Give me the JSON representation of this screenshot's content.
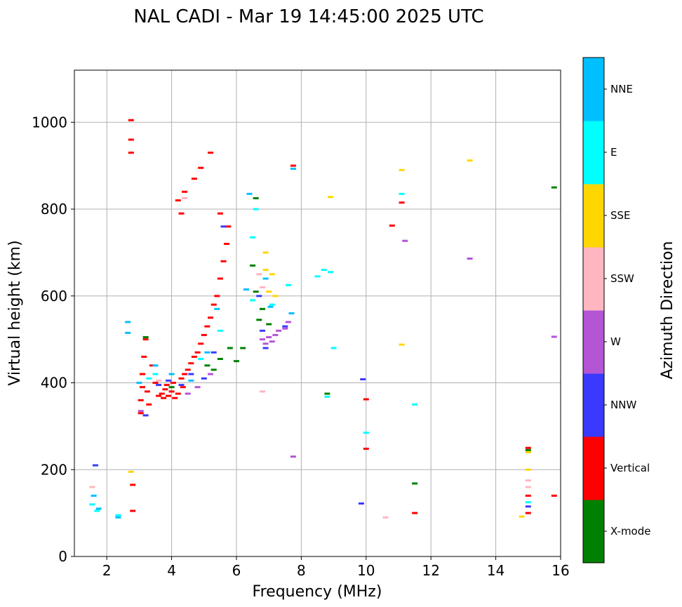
{
  "chart_data": {
    "type": "scatter",
    "title": "NAL CADI - Mar 19 14:45:00 2025 UTC",
    "xlabel": "Frequency (MHz)",
    "ylabel": "Virtual height (km)",
    "xlim": [
      1,
      16
    ],
    "ylim": [
      0,
      1120
    ],
    "xticks": [
      2,
      4,
      6,
      8,
      10,
      12,
      14,
      16
    ],
    "yticks": [
      0,
      200,
      400,
      600,
      800,
      1000
    ],
    "grid": true,
    "colorbar": {
      "label": "Azimuth Direction",
      "categories": [
        {
          "name": "X-mode",
          "color": "#008000"
        },
        {
          "name": "Vertical",
          "color": "#ff0000"
        },
        {
          "name": "NNW",
          "color": "#3a3aff"
        },
        {
          "name": "W",
          "color": "#b455d6"
        },
        {
          "name": "SSW",
          "color": "#ffb6c1"
        },
        {
          "name": "SSE",
          "color": "#ffd700"
        },
        {
          "name": "E",
          "color": "#00ffff"
        },
        {
          "name": "NNE",
          "color": "#00bfff"
        }
      ]
    },
    "series": [
      {
        "name": "Vertical",
        "points": [
          [
            2.75,
            1005
          ],
          [
            2.75,
            960
          ],
          [
            2.75,
            930
          ],
          [
            3.05,
            330
          ],
          [
            3.05,
            360
          ],
          [
            3.1,
            390
          ],
          [
            3.1,
            420
          ],
          [
            3.15,
            460
          ],
          [
            3.2,
            500
          ],
          [
            3.25,
            380
          ],
          [
            3.3,
            350
          ],
          [
            3.4,
            440
          ],
          [
            3.5,
            400
          ],
          [
            3.6,
            370
          ],
          [
            3.7,
            375
          ],
          [
            3.75,
            365
          ],
          [
            3.8,
            385
          ],
          [
            3.85,
            395
          ],
          [
            3.9,
            370
          ],
          [
            4.0,
            380
          ],
          [
            4.05,
            400
          ],
          [
            4.1,
            365
          ],
          [
            4.2,
            375
          ],
          [
            4.3,
            410
          ],
          [
            4.35,
            390
          ],
          [
            4.4,
            420
          ],
          [
            4.5,
            430
          ],
          [
            4.6,
            445
          ],
          [
            4.7,
            460
          ],
          [
            4.8,
            470
          ],
          [
            4.9,
            490
          ],
          [
            5.0,
            510
          ],
          [
            5.1,
            530
          ],
          [
            5.2,
            550
          ],
          [
            5.3,
            580
          ],
          [
            5.4,
            600
          ],
          [
            5.5,
            640
          ],
          [
            5.6,
            680
          ],
          [
            5.7,
            720
          ],
          [
            5.75,
            760
          ],
          [
            5.5,
            790
          ],
          [
            5.2,
            930
          ],
          [
            4.9,
            895
          ],
          [
            4.7,
            870
          ],
          [
            4.4,
            840
          ],
          [
            4.2,
            820
          ],
          [
            4.3,
            790
          ],
          [
            2.8,
            165
          ],
          [
            2.8,
            105
          ],
          [
            10.0,
            362
          ],
          [
            10.0,
            248
          ],
          [
            10.8,
            762
          ],
          [
            11.1,
            815
          ],
          [
            7.75,
            900
          ],
          [
            15.0,
            250
          ],
          [
            15.0,
            100
          ],
          [
            15.0,
            140
          ],
          [
            15.8,
            140
          ],
          [
            11.5,
            100
          ]
        ]
      },
      {
        "name": "NNW",
        "points": [
          [
            3.2,
            325
          ],
          [
            3.6,
            395
          ],
          [
            3.9,
            405
          ],
          [
            4.3,
            395
          ],
          [
            4.6,
            420
          ],
          [
            5.0,
            410
          ],
          [
            5.3,
            470
          ],
          [
            5.6,
            760
          ],
          [
            6.7,
            600
          ],
          [
            6.8,
            520
          ],
          [
            6.9,
            480
          ],
          [
            7.5,
            530
          ],
          [
            9.9,
            408
          ],
          [
            9.85,
            122
          ],
          [
            1.65,
            210
          ],
          [
            15.0,
            115
          ]
        ]
      },
      {
        "name": "W",
        "points": [
          [
            3.05,
            335
          ],
          [
            4.5,
            375
          ],
          [
            4.8,
            390
          ],
          [
            5.2,
            420
          ],
          [
            6.8,
            500
          ],
          [
            6.9,
            490
          ],
          [
            7.0,
            505
          ],
          [
            7.1,
            495
          ],
          [
            7.2,
            510
          ],
          [
            7.3,
            520
          ],
          [
            7.5,
            525
          ],
          [
            7.6,
            540
          ],
          [
            7.75,
            230
          ],
          [
            11.2,
            727
          ],
          [
            13.2,
            686
          ],
          [
            15.8,
            506
          ]
        ]
      },
      {
        "name": "SSW",
        "points": [
          [
            3.6,
            405
          ],
          [
            4.4,
            825
          ],
          [
            6.7,
            650
          ],
          [
            6.8,
            620
          ],
          [
            6.8,
            380
          ],
          [
            1.55,
            160
          ],
          [
            10.6,
            90
          ],
          [
            15.0,
            175
          ],
          [
            15.0,
            160
          ]
        ]
      },
      {
        "name": "SSE",
        "points": [
          [
            6.9,
            700
          ],
          [
            6.9,
            660
          ],
          [
            7.1,
            650
          ],
          [
            7.0,
            610
          ],
          [
            7.2,
            600
          ],
          [
            8.9,
            828
          ],
          [
            11.1,
            890
          ],
          [
            11.1,
            488
          ],
          [
            13.2,
            912
          ],
          [
            15.0,
            200
          ],
          [
            15.0,
            240
          ],
          [
            14.8,
            92
          ],
          [
            2.75,
            195
          ]
        ]
      },
      {
        "name": "E",
        "points": [
          [
            3.3,
            410
          ],
          [
            3.5,
            420
          ],
          [
            4.9,
            455
          ],
          [
            5.5,
            520
          ],
          [
            6.5,
            735
          ],
          [
            6.6,
            800
          ],
          [
            6.5,
            590
          ],
          [
            7.1,
            580
          ],
          [
            7.6,
            625
          ],
          [
            8.5,
            645
          ],
          [
            8.7,
            660
          ],
          [
            8.9,
            655
          ],
          [
            9.0,
            480
          ],
          [
            8.8,
            368
          ],
          [
            10.0,
            285
          ],
          [
            11.1,
            835
          ],
          [
            11.5,
            350
          ],
          [
            1.55,
            120
          ],
          [
            1.7,
            105
          ],
          [
            2.35,
            95
          ],
          [
            15.0,
            125
          ]
        ]
      },
      {
        "name": "NNE",
        "points": [
          [
            3.0,
            400
          ],
          [
            3.5,
            440
          ],
          [
            4.0,
            420
          ],
          [
            4.6,
            405
          ],
          [
            5.1,
            470
          ],
          [
            5.4,
            570
          ],
          [
            6.4,
            835
          ],
          [
            6.3,
            615
          ],
          [
            6.9,
            640
          ],
          [
            7.05,
            575
          ],
          [
            7.7,
            560
          ],
          [
            7.75,
            893
          ],
          [
            1.6,
            140
          ],
          [
            1.75,
            110
          ],
          [
            2.35,
            90
          ],
          [
            2.65,
            540
          ],
          [
            2.65,
            515
          ]
        ]
      },
      {
        "name": "X-mode",
        "points": [
          [
            3.2,
            505
          ],
          [
            4.0,
            390
          ],
          [
            5.1,
            440
          ],
          [
            5.3,
            430
          ],
          [
            5.5,
            455
          ],
          [
            5.8,
            480
          ],
          [
            6.0,
            450
          ],
          [
            6.2,
            480
          ],
          [
            6.6,
            825
          ],
          [
            6.5,
            670
          ],
          [
            6.6,
            610
          ],
          [
            6.8,
            570
          ],
          [
            6.7,
            545
          ],
          [
            7.0,
            535
          ],
          [
            8.8,
            375
          ],
          [
            11.5,
            168
          ],
          [
            15.0,
            245
          ],
          [
            15.8,
            850
          ]
        ]
      }
    ]
  }
}
